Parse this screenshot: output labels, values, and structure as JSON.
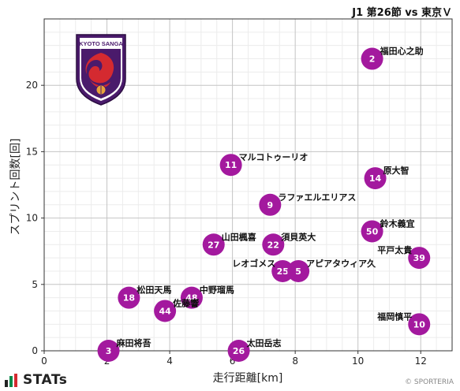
{
  "header": {
    "title": "J1 第26節 vs 東京Ｖ"
  },
  "emblem": {
    "text": "KYOTO SANGA"
  },
  "footer": {
    "logo_text": "STATs",
    "credit": "© SPORTERIA"
  },
  "chart_data": {
    "type": "scatter",
    "title": "J1 第26節 vs 東京Ｖ",
    "xlabel": "走行距離[km]",
    "ylabel": "スプリント回数[回]",
    "xlim": [
      0,
      13
    ],
    "ylim": [
      0,
      25
    ],
    "xticks": [
      0,
      2,
      4,
      6,
      8,
      10,
      12
    ],
    "yticks": [
      0,
      5,
      10,
      15,
      20
    ],
    "grid": true,
    "marker_color": "#a3199e",
    "points": [
      {
        "number": "2",
        "name": "福田心之助",
        "x": 10.45,
        "y": 22,
        "label_side": "right"
      },
      {
        "number": "11",
        "name": "マルコトゥーリオ",
        "x": 5.95,
        "y": 14,
        "label_side": "right"
      },
      {
        "number": "14",
        "name": "原大智",
        "x": 10.55,
        "y": 13,
        "label_side": "right"
      },
      {
        "number": "9",
        "name": "ラファエルエリアス",
        "x": 7.2,
        "y": 11,
        "label_side": "right"
      },
      {
        "number": "50",
        "name": "鈴木義宜",
        "x": 10.45,
        "y": 9,
        "label_side": "right"
      },
      {
        "number": "27",
        "name": "山田楓喜",
        "x": 5.4,
        "y": 8,
        "label_side": "right"
      },
      {
        "number": "22",
        "name": "須貝英大",
        "x": 7.3,
        "y": 8,
        "label_side": "right"
      },
      {
        "number": "39",
        "name": "平戸太貴",
        "x": 11.95,
        "y": 7,
        "label_side": "left"
      },
      {
        "number": "25",
        "name": "レオゴメス",
        "x": 7.6,
        "y": 6,
        "label_side": "left"
      },
      {
        "number": "5",
        "name": "アピアタウィア久",
        "x": 8.1,
        "y": 6,
        "label_side": "right"
      },
      {
        "number": "18",
        "name": "松田天馬",
        "x": 2.7,
        "y": 4,
        "label_side": "right"
      },
      {
        "number": "48",
        "name": "中野瑠馬",
        "x": 4.7,
        "y": 4,
        "label_side": "right"
      },
      {
        "number": "44",
        "name": "佐藤響",
        "x": 3.85,
        "y": 3,
        "label_side": "right"
      },
      {
        "number": "10",
        "name": "福岡慎平",
        "x": 11.95,
        "y": 2,
        "label_side": "left"
      },
      {
        "number": "3",
        "name": "麻田将吾",
        "x": 2.05,
        "y": 0,
        "label_side": "right"
      },
      {
        "number": "26",
        "name": "太田岳志",
        "x": 6.2,
        "y": 0,
        "label_side": "right"
      }
    ]
  }
}
